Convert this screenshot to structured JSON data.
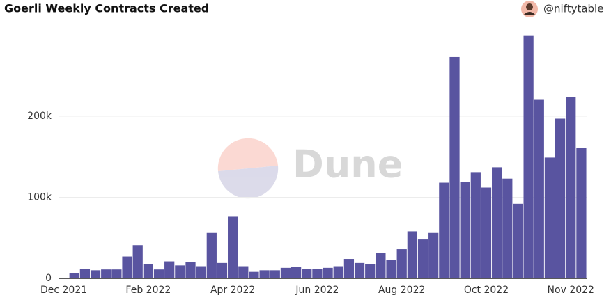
{
  "chart_data": {
    "type": "bar",
    "title": "Goerli Weekly Contracts Created",
    "author": "@niftytable",
    "watermark": "Dune",
    "categories": [
      null,
      null,
      null,
      null,
      null,
      null,
      null,
      null,
      null,
      null,
      null,
      null,
      null,
      null,
      null,
      null,
      null,
      null,
      null,
      null,
      null,
      null,
      null,
      null,
      null,
      null,
      null,
      null,
      null,
      null,
      null,
      null,
      null,
      null,
      null,
      null,
      null,
      null,
      null,
      null,
      null,
      null,
      null,
      null,
      null,
      null,
      null,
      null,
      null
    ],
    "values": [
      6000,
      12000,
      10000,
      11000,
      11000,
      27000,
      41000,
      18000,
      11000,
      21000,
      16000,
      20000,
      15000,
      56000,
      19000,
      76000,
      15000,
      8000,
      10000,
      10000,
      13000,
      14000,
      12000,
      12000,
      13000,
      15000,
      24000,
      19000,
      18000,
      31000,
      23000,
      36000,
      58000,
      48000,
      56000,
      118000,
      273000,
      119000,
      131000,
      112000,
      137000,
      123000,
      92000,
      299000,
      221000,
      149000,
      197000,
      224000,
      161000
    ],
    "color": "#5954a0",
    "xlim": [
      -1.5,
      48.5
    ],
    "xticks": [
      {
        "value": -1,
        "label": "Dec 2021"
      },
      {
        "value": 7,
        "label": "Feb 2022"
      },
      {
        "value": 15,
        "label": "Apr 2022"
      },
      {
        "value": 23,
        "label": "Jun 2022"
      },
      {
        "value": 31,
        "label": "Aug 2022"
      },
      {
        "value": 39,
        "label": "Oct 2022"
      },
      {
        "value": 47,
        "label": "Nov 2022"
      }
    ],
    "ylim": [
      0,
      300000
    ],
    "yticks": [
      0,
      {
        "value": 100000,
        "label": "100k"
      },
      {
        "value": 200000,
        "label": "200k"
      }
    ],
    "grid": true
  }
}
